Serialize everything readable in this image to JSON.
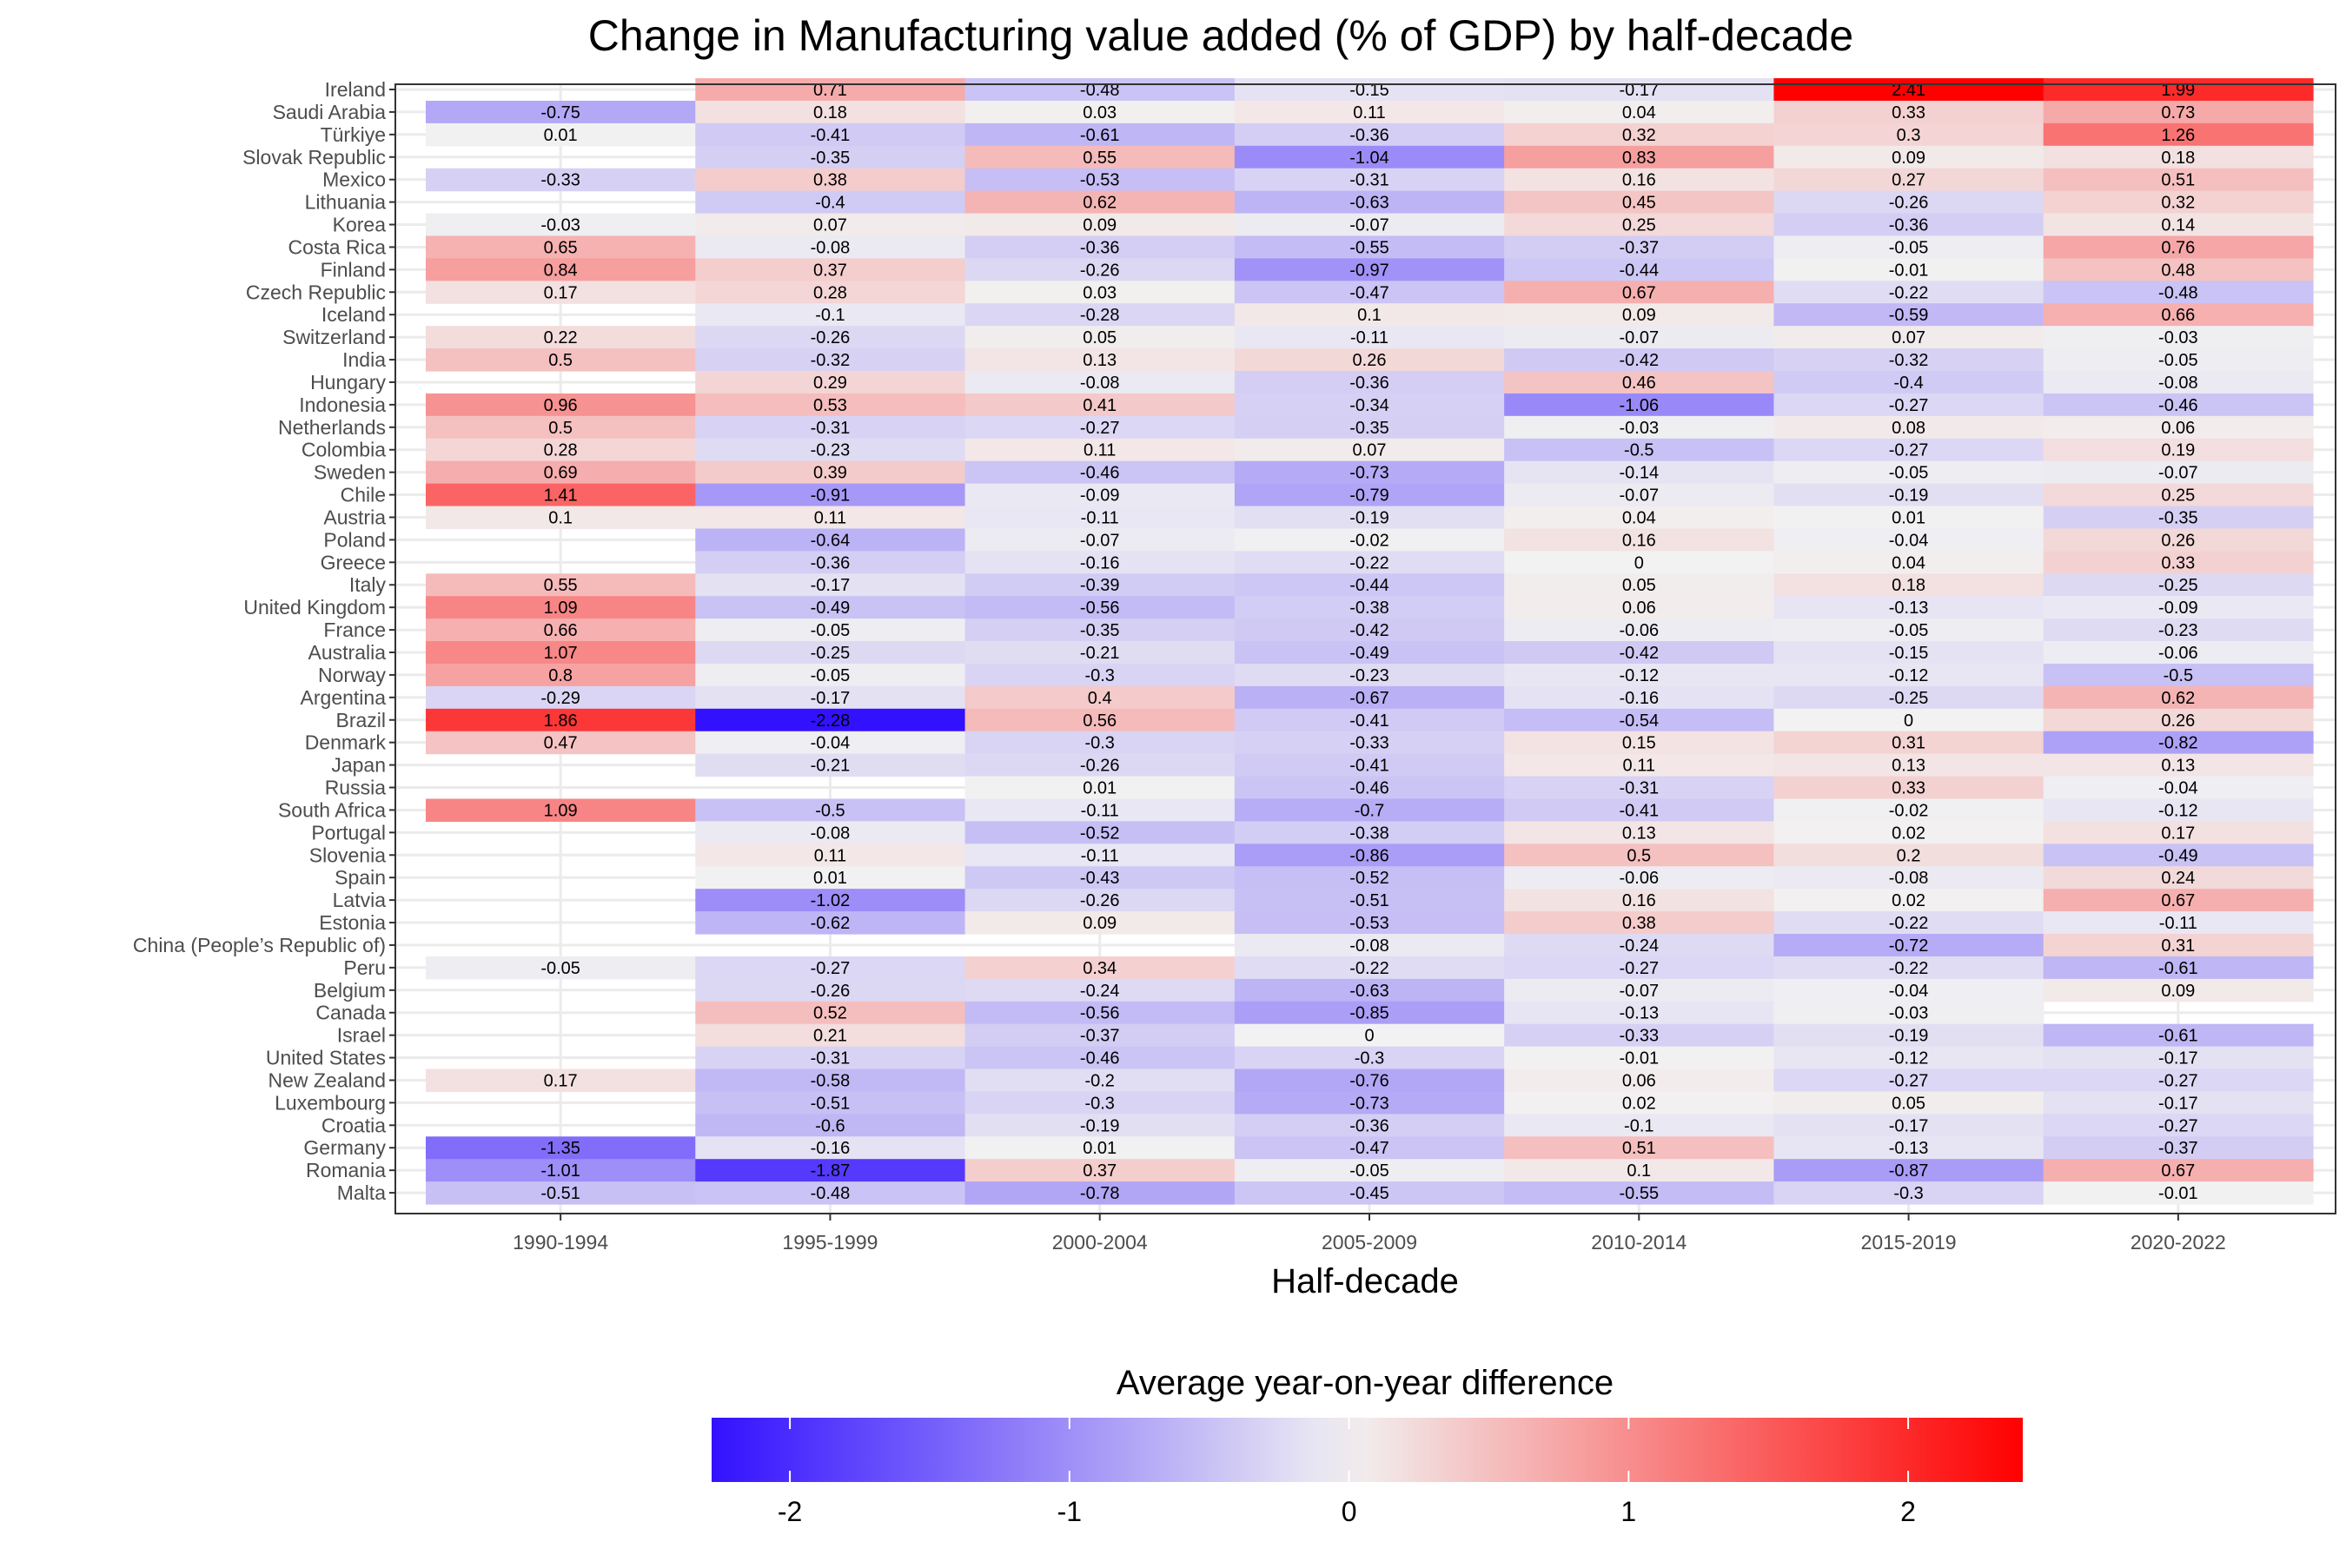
{
  "chart_data": {
    "type": "heatmap",
    "title": "Change in Manufacturing value added (% of GDP) by half-decade",
    "xlabel": "Half-decade",
    "ylabel": "",
    "x": [
      "1990-1994",
      "1995-1999",
      "2000-2004",
      "2005-2009",
      "2010-2014",
      "2015-2019",
      "2020-2022"
    ],
    "y": [
      "Ireland",
      "Saudi Arabia",
      "Türkiye",
      "Slovak Republic",
      "Mexico",
      "Lithuania",
      "Korea",
      "Costa Rica",
      "Finland",
      "Czech Republic",
      "Iceland",
      "Switzerland",
      "India",
      "Hungary",
      "Indonesia",
      "Netherlands",
      "Colombia",
      "Sweden",
      "Chile",
      "Austria",
      "Poland",
      "Greece",
      "Italy",
      "United Kingdom",
      "France",
      "Australia",
      "Norway",
      "Argentina",
      "Brazil",
      "Denmark",
      "Japan",
      "Russia",
      "South Africa",
      "Portugal",
      "Slovenia",
      "Spain",
      "Latvia",
      "Estonia",
      "China (People’s Republic of)",
      "Peru",
      "Belgium",
      "Canada",
      "Israel",
      "United States",
      "New Zealand",
      "Luxembourg",
      "Croatia",
      "Germany",
      "Romania",
      "Malta"
    ],
    "values": [
      [
        null,
        0.71,
        -0.48,
        -0.15,
        -0.17,
        2.41,
        1.99
      ],
      [
        -0.75,
        0.18,
        0.03,
        0.11,
        0.04,
        0.33,
        0.73
      ],
      [
        0.01,
        -0.41,
        -0.61,
        -0.36,
        0.32,
        0.3,
        1.26
      ],
      [
        null,
        -0.35,
        0.55,
        -1.04,
        0.83,
        0.09,
        0.18
      ],
      [
        -0.33,
        0.38,
        -0.53,
        -0.31,
        0.16,
        0.27,
        0.51
      ],
      [
        null,
        -0.4,
        0.62,
        -0.63,
        0.45,
        -0.26,
        0.32
      ],
      [
        -0.03,
        0.07,
        0.09,
        -0.07,
        0.25,
        -0.36,
        0.14
      ],
      [
        0.65,
        -0.08,
        -0.36,
        -0.55,
        -0.37,
        -0.05,
        0.76
      ],
      [
        0.84,
        0.37,
        -0.26,
        -0.97,
        -0.44,
        -0.01,
        0.48
      ],
      [
        0.17,
        0.28,
        0.03,
        -0.47,
        0.67,
        -0.22,
        -0.48
      ],
      [
        null,
        -0.1,
        -0.28,
        0.1,
        0.09,
        -0.59,
        0.66
      ],
      [
        0.22,
        -0.26,
        0.05,
        -0.11,
        -0.07,
        0.07,
        -0.03
      ],
      [
        0.5,
        -0.32,
        0.13,
        0.26,
        -0.42,
        -0.32,
        -0.05
      ],
      [
        null,
        0.29,
        -0.08,
        -0.36,
        0.46,
        -0.4,
        -0.08
      ],
      [
        0.96,
        0.53,
        0.41,
        -0.34,
        -1.06,
        -0.27,
        -0.46
      ],
      [
        0.5,
        -0.31,
        -0.27,
        -0.35,
        -0.03,
        0.08,
        0.06
      ],
      [
        0.28,
        -0.23,
        0.11,
        0.07,
        -0.5,
        -0.27,
        0.19
      ],
      [
        0.69,
        0.39,
        -0.46,
        -0.73,
        -0.14,
        -0.05,
        -0.07
      ],
      [
        1.41,
        -0.91,
        -0.09,
        -0.79,
        -0.07,
        -0.19,
        0.25
      ],
      [
        0.1,
        0.11,
        -0.11,
        -0.19,
        0.04,
        0.01,
        -0.35
      ],
      [
        null,
        -0.64,
        -0.07,
        -0.02,
        0.16,
        -0.04,
        0.26
      ],
      [
        null,
        -0.36,
        -0.16,
        -0.22,
        0,
        0.04,
        0.33
      ],
      [
        0.55,
        -0.17,
        -0.39,
        -0.44,
        0.05,
        0.18,
        -0.25
      ],
      [
        1.09,
        -0.49,
        -0.56,
        -0.38,
        0.06,
        -0.13,
        -0.09
      ],
      [
        0.66,
        -0.05,
        -0.35,
        -0.42,
        -0.06,
        -0.05,
        -0.23
      ],
      [
        1.07,
        -0.25,
        -0.21,
        -0.49,
        -0.42,
        -0.15,
        -0.06
      ],
      [
        0.8,
        -0.05,
        -0.3,
        -0.23,
        -0.12,
        -0.12,
        -0.5
      ],
      [
        -0.29,
        -0.17,
        0.4,
        -0.67,
        -0.16,
        -0.25,
        0.62
      ],
      [
        1.86,
        -2.28,
        0.56,
        -0.41,
        -0.54,
        0,
        0.26
      ],
      [
        0.47,
        -0.04,
        -0.3,
        -0.33,
        0.15,
        0.31,
        -0.82
      ],
      [
        null,
        -0.21,
        -0.26,
        -0.41,
        0.11,
        0.13,
        0.13
      ],
      [
        null,
        null,
        0.01,
        -0.46,
        -0.31,
        0.33,
        -0.04
      ],
      [
        1.09,
        -0.5,
        -0.11,
        -0.7,
        -0.41,
        -0.02,
        -0.12
      ],
      [
        null,
        -0.08,
        -0.52,
        -0.38,
        0.13,
        0.02,
        0.17
      ],
      [
        null,
        0.11,
        -0.11,
        -0.86,
        0.5,
        0.2,
        -0.49
      ],
      [
        null,
        0.01,
        -0.43,
        -0.52,
        -0.06,
        -0.08,
        0.24
      ],
      [
        null,
        -1.02,
        -0.26,
        -0.51,
        0.16,
        0.02,
        0.67
      ],
      [
        null,
        -0.62,
        0.09,
        -0.53,
        0.38,
        -0.22,
        -0.11
      ],
      [
        null,
        null,
        null,
        -0.08,
        -0.24,
        -0.72,
        0.31
      ],
      [
        -0.05,
        -0.27,
        0.34,
        -0.22,
        -0.27,
        -0.22,
        -0.61
      ],
      [
        null,
        -0.26,
        -0.24,
        -0.63,
        -0.07,
        -0.04,
        0.09
      ],
      [
        null,
        0.52,
        -0.56,
        -0.85,
        -0.13,
        -0.03,
        null
      ],
      [
        null,
        0.21,
        -0.37,
        0,
        -0.33,
        -0.19,
        -0.61
      ],
      [
        null,
        -0.31,
        -0.46,
        -0.3,
        -0.01,
        -0.12,
        -0.17
      ],
      [
        0.17,
        -0.58,
        -0.2,
        -0.76,
        0.06,
        -0.27,
        -0.27
      ],
      [
        null,
        -0.51,
        -0.3,
        -0.73,
        0.02,
        0.05,
        -0.17
      ],
      [
        null,
        -0.6,
        -0.19,
        -0.36,
        -0.1,
        -0.17,
        -0.27
      ],
      [
        -1.35,
        -0.16,
        0.01,
        -0.47,
        0.51,
        -0.13,
        -0.37
      ],
      [
        -1.01,
        -1.87,
        0.37,
        -0.05,
        0.1,
        -0.87,
        0.67
      ],
      [
        -0.51,
        -0.48,
        -0.78,
        -0.45,
        -0.55,
        -0.3,
        -0.01
      ]
    ],
    "legend": {
      "title": "Average year-on-year difference",
      "position": "bottom",
      "ticks": [
        -2,
        -1,
        0,
        1,
        2
      ],
      "range": [
        -2.28,
        2.41
      ]
    },
    "colors": {
      "low": "#3311ff",
      "mid": "#f2f2f2",
      "high": "#ff0000",
      "grid": "#ebebeb",
      "panel_border": "#333333",
      "text": "#000000",
      "axis_text": "#4d4d4d"
    },
    "grid": true
  }
}
